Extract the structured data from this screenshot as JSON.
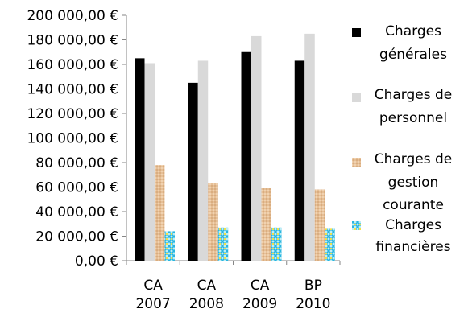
{
  "chart_data": {
    "type": "bar",
    "title": "",
    "xlabel": "",
    "ylabel": "",
    "categories": [
      [
        "CA",
        "2007"
      ],
      [
        "CA",
        "2008"
      ],
      [
        "CA",
        "2009"
      ],
      [
        "BP",
        "2010"
      ]
    ],
    "ylim": [
      0,
      200000
    ],
    "y_ticks": [
      0,
      20000,
      40000,
      60000,
      80000,
      100000,
      120000,
      140000,
      160000,
      180000,
      200000
    ],
    "y_tick_labels": [
      "0,00 €",
      "20 000,00 €",
      "40 000,00 €",
      "60 000,00 €",
      "80 000,00 €",
      "100 000,00 €",
      "120 000,00 €",
      "140 000,00 €",
      "160 000,00 €",
      "180 000,00 €",
      "200 000,00 €"
    ],
    "grid": false,
    "legend_position": "right",
    "series": [
      {
        "name": [
          "Charges",
          "générales"
        ],
        "color": "#000000",
        "values": [
          165000,
          145000,
          170000,
          163000
        ]
      },
      {
        "name": [
          "Charges de",
          "personnel"
        ],
        "color": "#d9d9d9",
        "values": [
          161000,
          163000,
          183000,
          185000
        ]
      },
      {
        "name": [
          "Charges de",
          "gestion",
          "courante"
        ],
        "color": "#e8c29a",
        "values": [
          78000,
          63000,
          59000,
          58000
        ]
      },
      {
        "name": [
          "Charges",
          "financières"
        ],
        "color": "#5fd0e8",
        "values": [
          24000,
          27000,
          27000,
          26000
        ]
      }
    ]
  }
}
